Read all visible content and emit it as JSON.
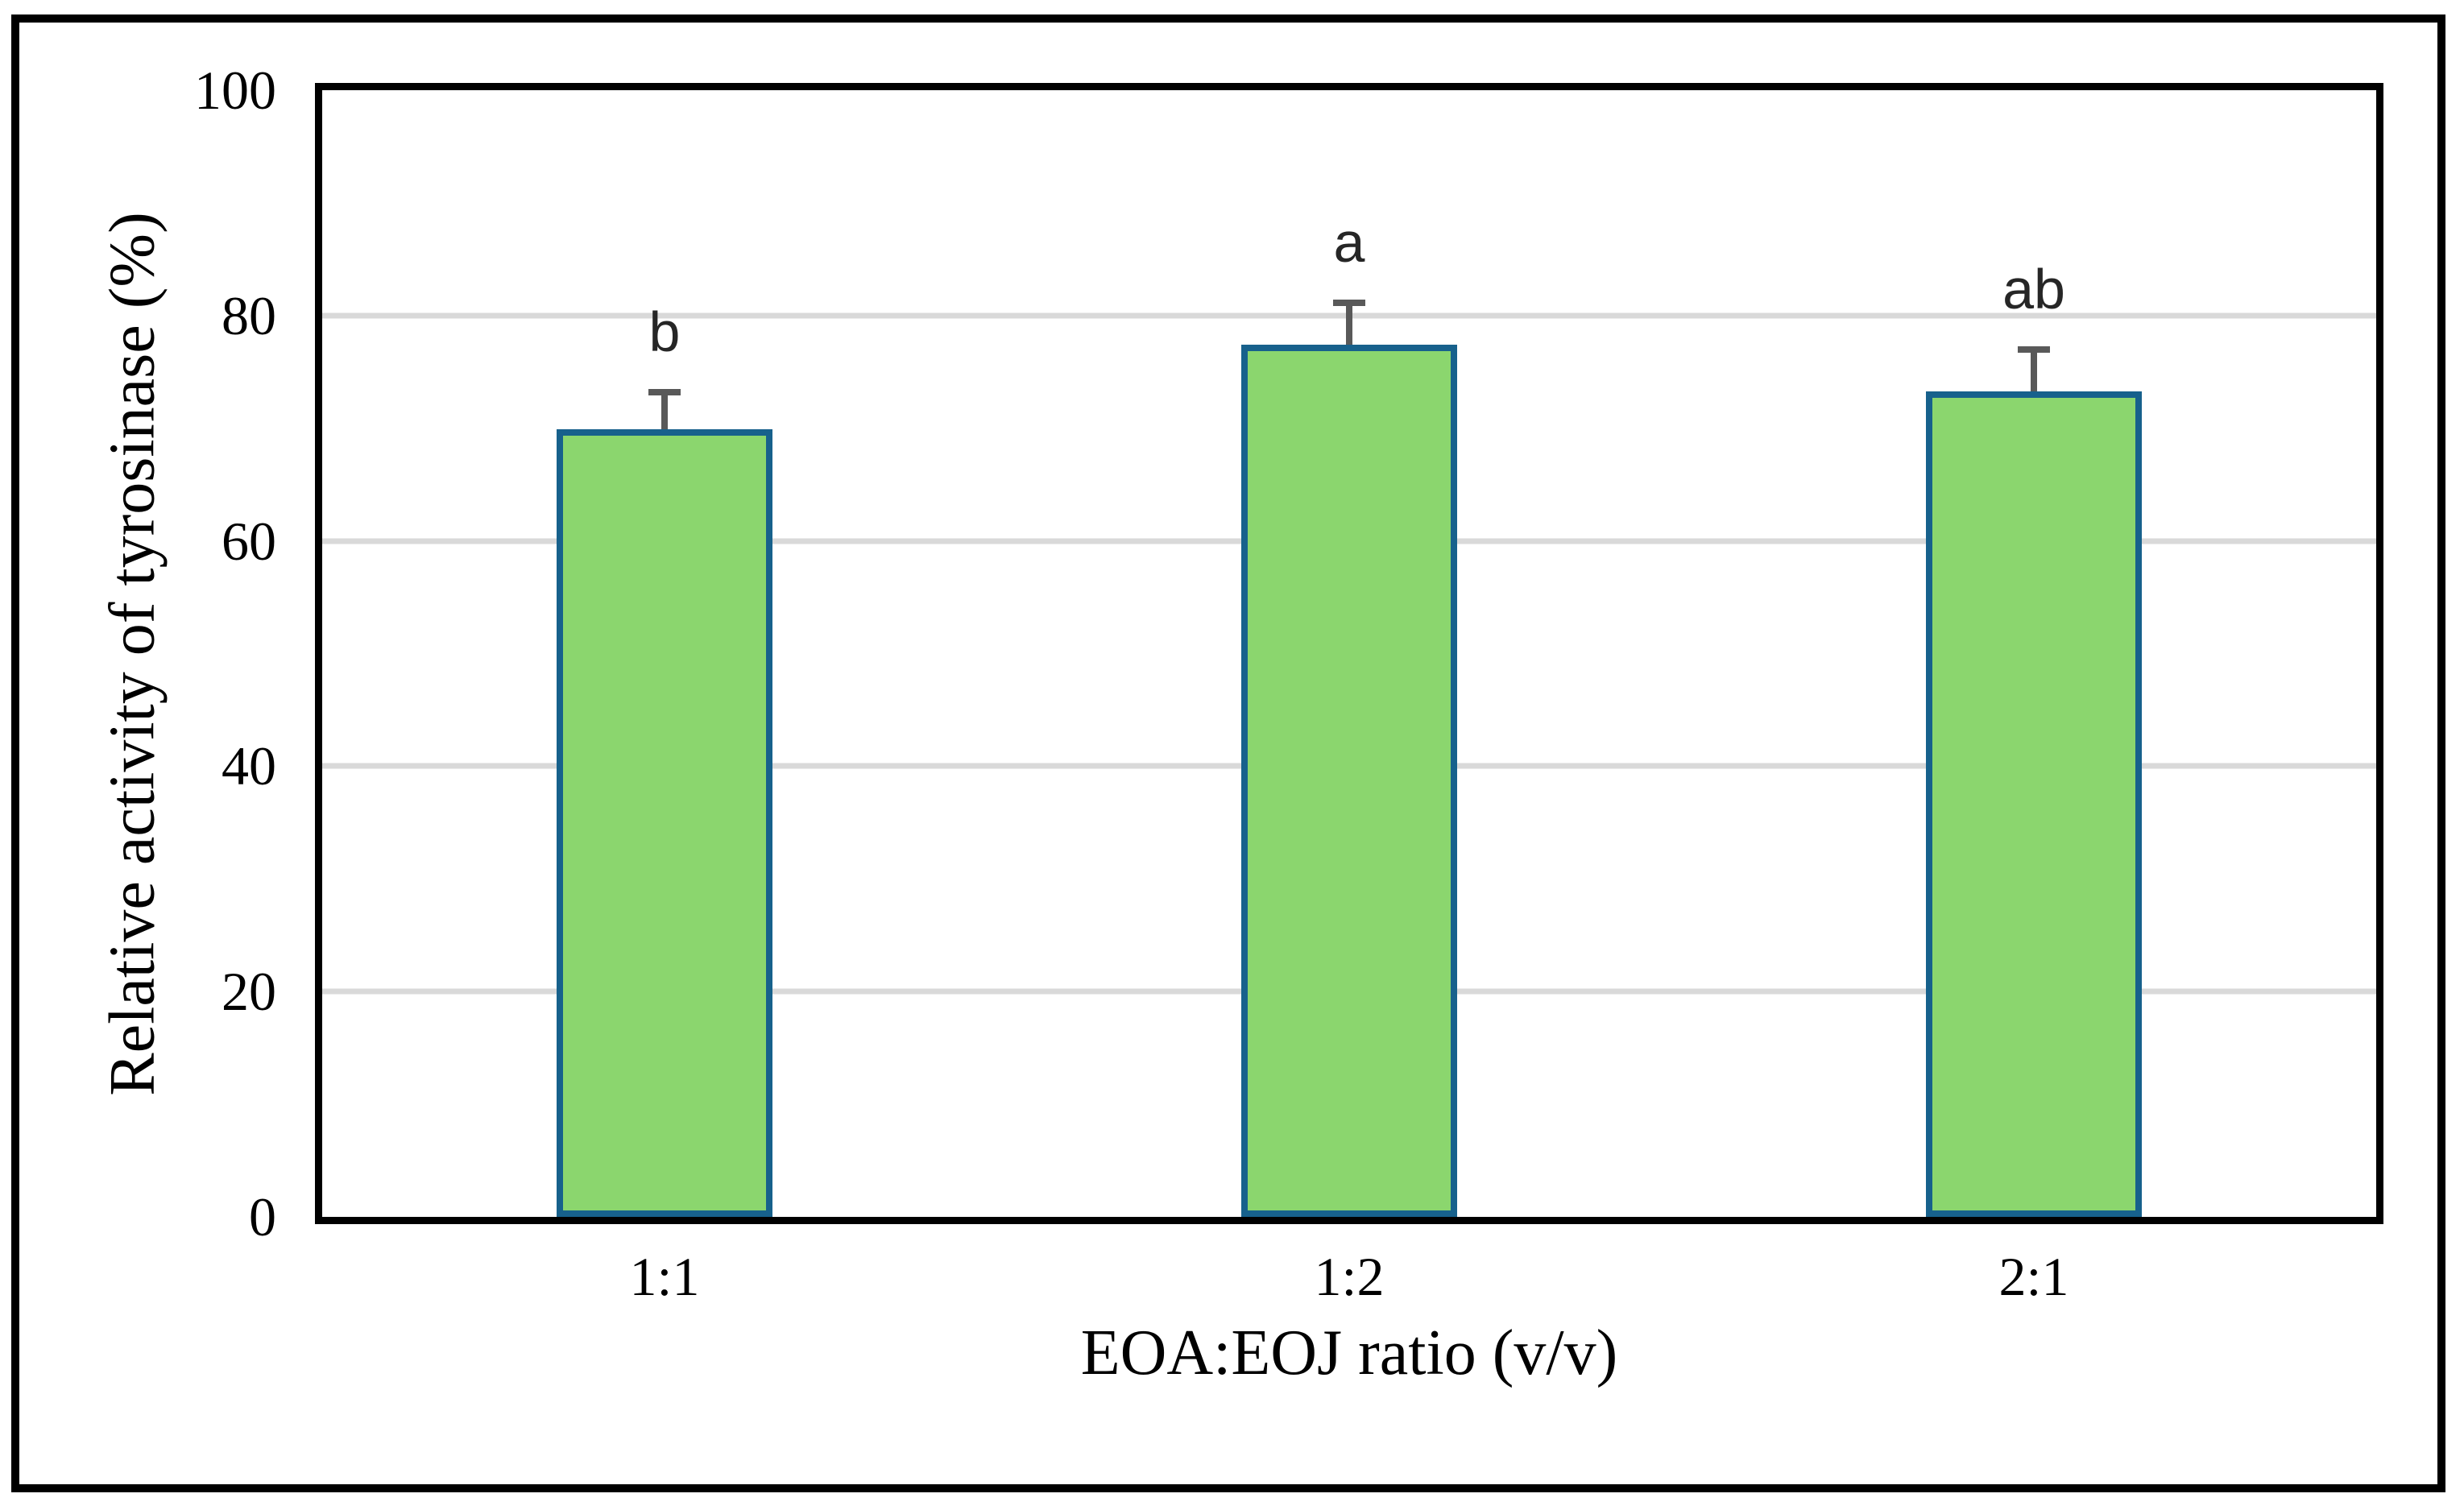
{
  "chart_data": {
    "type": "bar",
    "title": "",
    "categories": [
      "1:1",
      "1:2",
      "2:1"
    ],
    "values": [
      69.9,
      77.4,
      73.3
    ],
    "error_bars_plus": [
      3.3,
      3.7,
      3.7
    ],
    "significance_labels": [
      "b",
      "a",
      "ab"
    ],
    "xlabel": "EOA:EOJ ratio (v/v)",
    "ylabel": "Relative activity of tyrosinase (%)",
    "ylim": [
      0,
      100
    ],
    "yticks": [
      0,
      20,
      40,
      60,
      80,
      100
    ],
    "grid": "horizontal-major",
    "legend": "none",
    "colors": {
      "bar_fill": "#8BD66E",
      "bar_border": "#17618C",
      "error_bar": "#595959",
      "gridline": "#D9D9D9",
      "axis_line": "#000000",
      "text": "#000000",
      "significance_letter": "#262626",
      "background": "#FFFFFF"
    }
  }
}
